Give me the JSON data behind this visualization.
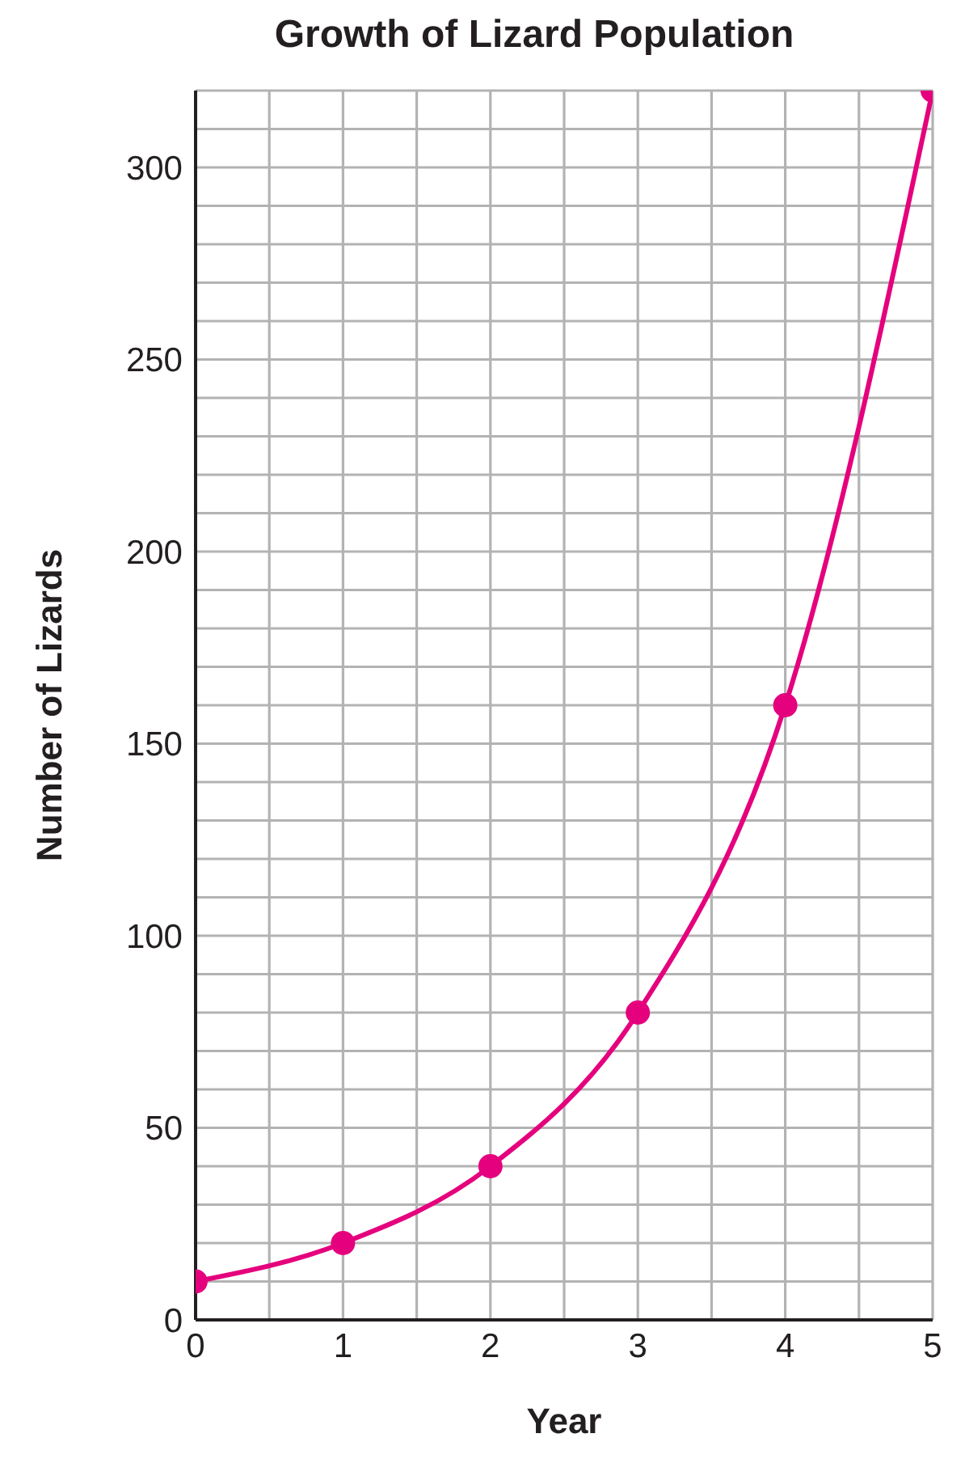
{
  "chart_data": {
    "type": "line",
    "title": "Growth of Lizard Population",
    "xlabel": "Year",
    "ylabel": "Number of Lizards",
    "x": [
      0,
      1,
      2,
      3,
      4,
      5
    ],
    "series": [
      {
        "color": "#e5007d",
        "values": [
          10,
          20,
          40,
          80,
          160,
          320
        ]
      }
    ],
    "xlim": [
      0,
      5
    ],
    "xticks": [
      0,
      {
        "value": 0.5,
        "label": null
      },
      1,
      {
        "value": 1.5,
        "label": null
      },
      2,
      {
        "value": 2.5,
        "label": null
      },
      3,
      {
        "value": 3.5,
        "label": null
      },
      4,
      {
        "value": 4.5,
        "label": null
      },
      5
    ],
    "ylim": [
      0,
      320
    ],
    "yticks": [
      0,
      {
        "value": 10,
        "label": null
      },
      {
        "value": 20,
        "label": null
      },
      {
        "value": 30,
        "label": null
      },
      {
        "value": 40,
        "label": null
      },
      50,
      {
        "value": 60,
        "label": null
      },
      {
        "value": 70,
        "label": null
      },
      {
        "value": 80,
        "label": null
      },
      {
        "value": 90,
        "label": null
      },
      100,
      {
        "value": 110,
        "label": null
      },
      {
        "value": 120,
        "label": null
      },
      {
        "value": 130,
        "label": null
      },
      {
        "value": 140,
        "label": null
      },
      150,
      {
        "value": 160,
        "label": null
      },
      {
        "value": 170,
        "label": null
      },
      {
        "value": 180,
        "label": null
      },
      {
        "value": 190,
        "label": null
      },
      200,
      {
        "value": 210,
        "label": null
      },
      {
        "value": 220,
        "label": null
      },
      {
        "value": 230,
        "label": null
      },
      {
        "value": 240,
        "label": null
      },
      250,
      {
        "value": 260,
        "label": null
      },
      {
        "value": 270,
        "label": null
      },
      {
        "value": 280,
        "label": null
      },
      {
        "value": 290,
        "label": null
      },
      300,
      {
        "value": 310,
        "label": null
      },
      {
        "value": 320,
        "label": null
      }
    ],
    "grid": true,
    "marker": "circle",
    "line_style": "solid"
  }
}
